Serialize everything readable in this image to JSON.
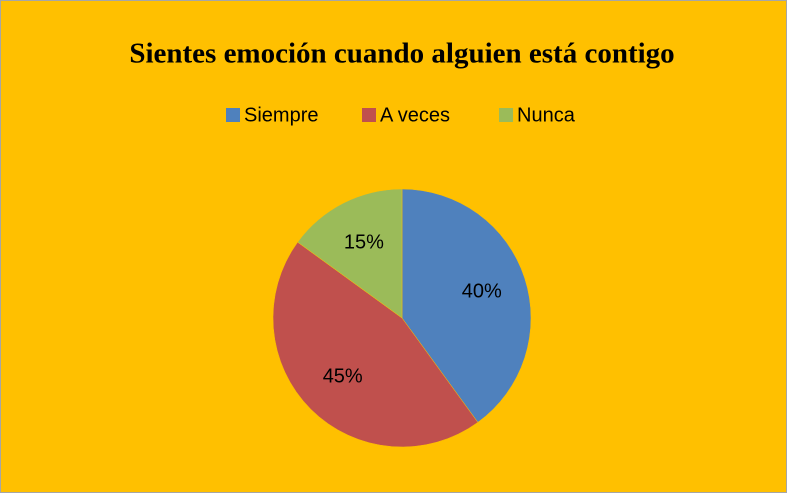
{
  "chart_data": {
    "type": "pie",
    "title": "Sientes emoción cuando alguien está contigo",
    "categories": [
      "Siempre",
      "A veces",
      "Nunca"
    ],
    "values": [
      40,
      45,
      15
    ],
    "value_labels": [
      "40%",
      "45%",
      "15%"
    ],
    "colors": [
      "#4F81BD",
      "#C0504D",
      "#9BBB59"
    ],
    "legend": "top"
  }
}
